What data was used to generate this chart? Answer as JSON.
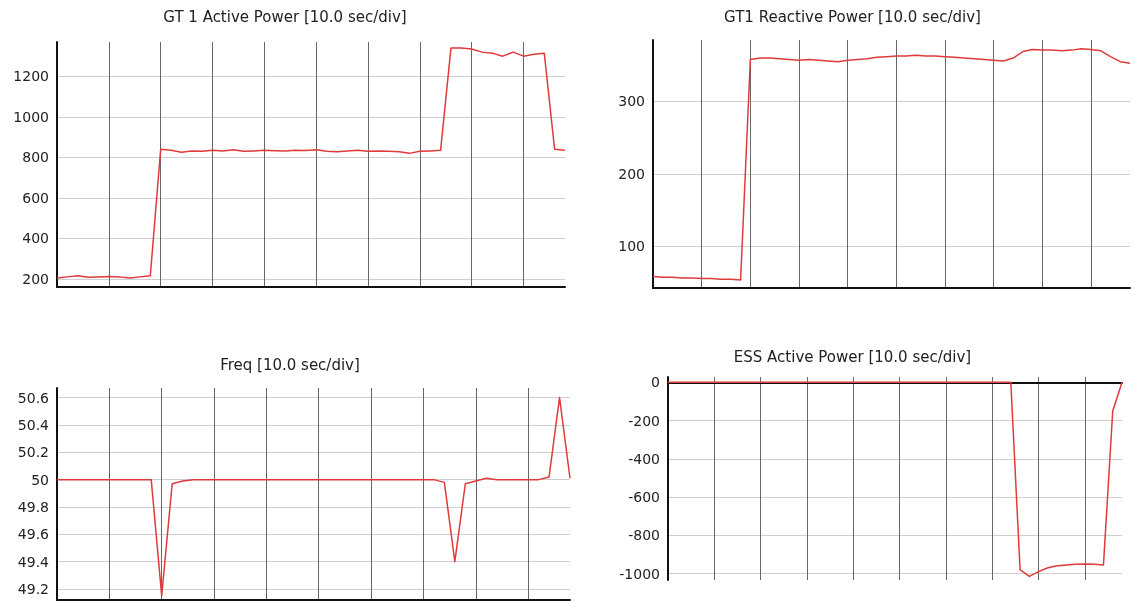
{
  "chart_data": [
    {
      "type": "line",
      "title": "GT 1 Active Power [10.0 sec/div]",
      "categories": [
        null,
        null,
        null,
        null,
        null,
        null,
        null,
        null,
        null,
        null,
        null,
        null,
        null,
        null,
        null,
        null,
        null,
        null,
        null,
        null,
        null,
        null,
        null,
        null,
        null,
        null,
        null,
        null,
        null,
        null,
        null,
        null,
        null,
        null,
        null,
        null,
        null,
        null,
        null,
        null,
        null,
        null,
        null,
        null,
        null,
        null,
        null,
        null,
        null,
        null
      ],
      "series": [
        {
          "color": "#e03a3a",
          "values": [
            205,
            210,
            215,
            208,
            210,
            212,
            210,
            205,
            210,
            215,
            840,
            835,
            825,
            832,
            830,
            835,
            832,
            838,
            830,
            832,
            835,
            833,
            832,
            835,
            834,
            838,
            830,
            828,
            832,
            835,
            830,
            832,
            830,
            828,
            820,
            830,
            832,
            835,
            1340,
            1340,
            1335,
            1320,
            1315,
            1300,
            1320,
            1300,
            1310,
            1315,
            840,
            835
          ]
        }
      ],
      "ylim": [
        160,
        1370
      ],
      "yticks": [
        200,
        400,
        600,
        800,
        1000,
        1200
      ],
      "grid": true,
      "tick_labels": "y",
      "marker": "none",
      "line_style": "solid"
    },
    {
      "type": "line",
      "title": "GT1 Reactive Power [10.0 sec/div]",
      "categories": [
        null,
        null,
        null,
        null,
        null,
        null,
        null,
        null,
        null,
        null,
        null,
        null,
        null,
        null,
        null,
        null,
        null,
        null,
        null,
        null,
        null,
        null,
        null,
        null,
        null,
        null,
        null,
        null,
        null,
        null,
        null,
        null,
        null,
        null,
        null,
        null,
        null,
        null,
        null,
        null,
        null,
        null,
        null,
        null,
        null,
        null,
        null,
        null,
        null,
        null
      ],
      "series": [
        {
          "color": "#e03a3a",
          "values": [
            58,
            57,
            57,
            56,
            56,
            55,
            55,
            54,
            54,
            53,
            358,
            360,
            360,
            359,
            358,
            357,
            358,
            357,
            356,
            355,
            357,
            358,
            359,
            361,
            362,
            363,
            363,
            364,
            363,
            363,
            362,
            361,
            360,
            359,
            358,
            357,
            356,
            360,
            369,
            372,
            371,
            371,
            370,
            371,
            373,
            372,
            370,
            362,
            355,
            353
          ]
        }
      ],
      "ylim": [
        42,
        385
      ],
      "yticks": [
        100,
        200,
        300
      ],
      "grid": true,
      "tick_labels": "y",
      "marker": "none",
      "line_style": "solid"
    },
    {
      "type": "line",
      "title": "Freq [10.0 sec/div]",
      "categories": [
        null,
        null,
        null,
        null,
        null,
        null,
        null,
        null,
        null,
        null,
        null,
        null,
        null,
        null,
        null,
        null,
        null,
        null,
        null,
        null,
        null,
        null,
        null,
        null,
        null,
        null,
        null,
        null,
        null,
        null,
        null,
        null,
        null,
        null,
        null,
        null,
        null,
        null,
        null,
        null,
        null,
        null,
        null,
        null,
        null,
        null,
        null,
        null,
        null,
        null
      ],
      "series": [
        {
          "color": "#e03a3a",
          "values": [
            50,
            50,
            50,
            50,
            50,
            50,
            50,
            50,
            50,
            50,
            49.15,
            49.97,
            49.99,
            50,
            50,
            50,
            50,
            50,
            50,
            50,
            50,
            50,
            50,
            50,
            50,
            50,
            50,
            50,
            50,
            50,
            50,
            50,
            50,
            50,
            50,
            50,
            50,
            49.98,
            49.4,
            49.97,
            49.99,
            50.01,
            50,
            50,
            50,
            50,
            50,
            50.02,
            50.6,
            50.01
          ]
        }
      ],
      "ylim": [
        49.12,
        50.67
      ],
      "yticks": [
        49.2,
        49.4,
        49.6,
        49.8,
        50,
        50.2,
        50.4,
        50.6
      ],
      "grid": true,
      "tick_labels": "y",
      "marker": "none",
      "line_style": "solid"
    },
    {
      "type": "line",
      "title": "ESS Active Power [10.0 sec/div]",
      "categories": [
        null,
        null,
        null,
        null,
        null,
        null,
        null,
        null,
        null,
        null,
        null,
        null,
        null,
        null,
        null,
        null,
        null,
        null,
        null,
        null,
        null,
        null,
        null,
        null,
        null,
        null,
        null,
        null,
        null,
        null,
        null,
        null,
        null,
        null,
        null,
        null,
        null,
        null,
        null,
        null,
        null,
        null,
        null,
        null,
        null,
        null,
        null,
        null,
        null,
        null
      ],
      "series": [
        {
          "color": "#e03a3a",
          "values": [
            0,
            0,
            0,
            0,
            0,
            0,
            0,
            0,
            0,
            0,
            0,
            0,
            0,
            0,
            0,
            0,
            0,
            0,
            0,
            0,
            0,
            0,
            0,
            0,
            0,
            0,
            0,
            0,
            0,
            0,
            0,
            0,
            0,
            0,
            0,
            0,
            0,
            0,
            -980,
            -1015,
            -990,
            -970,
            -960,
            -955,
            -952,
            -950,
            -952,
            -955,
            -150,
            0
          ]
        }
      ],
      "ylim": [
        -1034,
        28
      ],
      "yticks": [
        -1000,
        -800,
        -600,
        -400,
        -200,
        0
      ],
      "grid": true,
      "tick_labels": "y",
      "marker": "none",
      "line_style": "solid"
    }
  ]
}
